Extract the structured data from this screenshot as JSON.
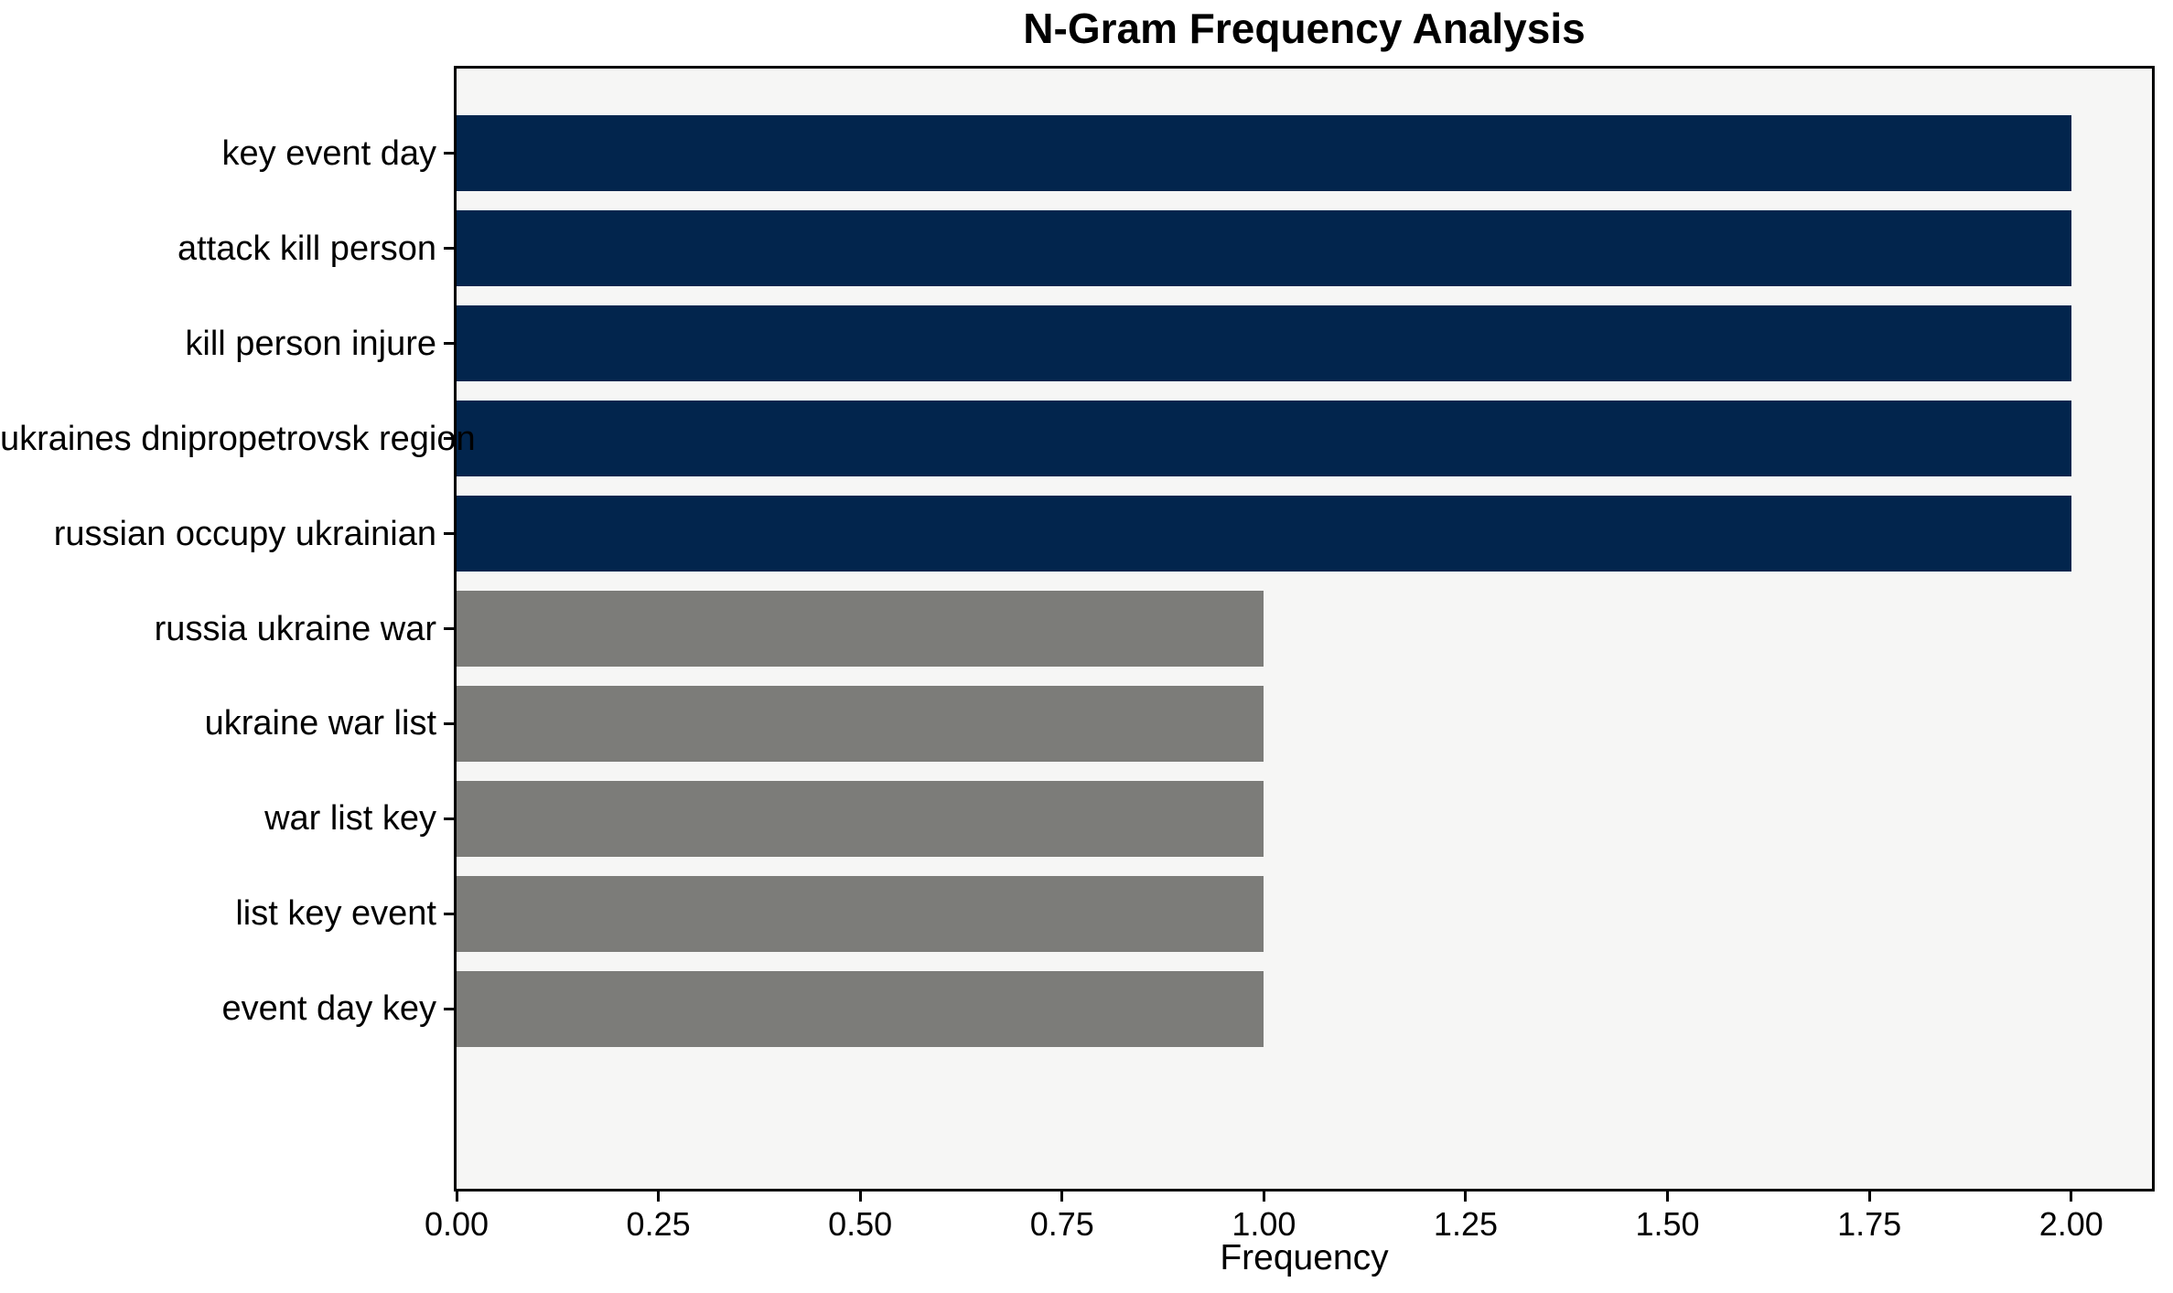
{
  "chart_data": {
    "type": "bar",
    "orientation": "horizontal",
    "title": "N-Gram Frequency Analysis",
    "xlabel": "Frequency",
    "ylabel": "",
    "categories": [
      "key event day",
      "attack kill person",
      "kill person injure",
      "ukraines dnipropetrovsk region",
      "russian occupy ukrainian",
      "russia ukraine war",
      "ukraine war list",
      "war list key",
      "list key event",
      "event day key"
    ],
    "values": [
      2,
      2,
      2,
      2,
      2,
      1,
      1,
      1,
      1,
      1
    ],
    "bar_colors": [
      "#02254d",
      "#02254d",
      "#02254d",
      "#02254d",
      "#02254d",
      "#7c7c79",
      "#7c7c79",
      "#7c7c79",
      "#7c7c79",
      "#7c7c79"
    ],
    "xlim": [
      0,
      2.1
    ],
    "xtick_labels": [
      "0.00",
      "0.25",
      "0.50",
      "0.75",
      "1.00",
      "1.25",
      "1.50",
      "1.75",
      "2.00"
    ],
    "xtick_values": [
      0,
      0.25,
      0.5,
      0.75,
      1.0,
      1.25,
      1.5,
      1.75,
      2.0
    ],
    "grid": false,
    "legend_position": "none",
    "colors": {
      "bar_high": "#02254d",
      "bar_low": "#7c7c79",
      "plot_background": "#f6f6f5",
      "figure_background": "#ffffff",
      "spine": "#000000",
      "text": "#000000"
    }
  }
}
